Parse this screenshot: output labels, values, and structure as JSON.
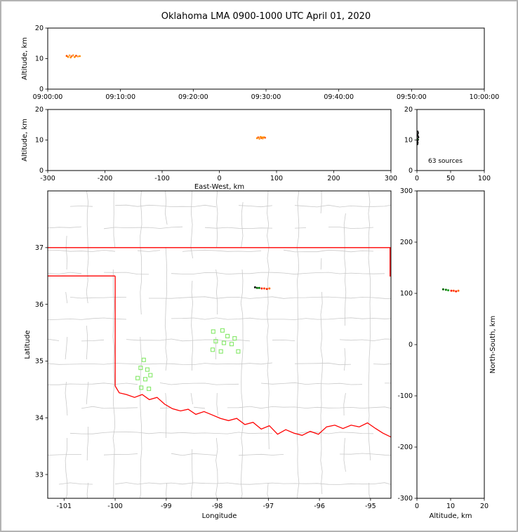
{
  "title": "Oklahoma LMA 0900-1000 UTC April 01, 2020",
  "frame": {
    "background": "#ffffff",
    "border_color": "#b3b3b3"
  },
  "chart_data": {
    "type": "scatter",
    "title": "Oklahoma LMA 0900-1000 UTC April 01, 2020",
    "panels": {
      "time_height": {
        "ylabel": "Altitude, km",
        "x_unit": "minutes after 09:00:00 UTC",
        "xlim": [
          0,
          60
        ],
        "ylim": [
          0,
          20
        ],
        "xticks": [
          {
            "v": 0,
            "label": "09:00:00"
          },
          {
            "v": 10,
            "label": "09:10:00"
          },
          {
            "v": 20,
            "label": "09:20:00"
          },
          {
            "v": 30,
            "label": "09:30:00"
          },
          {
            "v": 40,
            "label": "09:40:00"
          },
          {
            "v": 50,
            "label": "09:50:00"
          },
          {
            "v": 60,
            "label": "10:00:00"
          }
        ],
        "yticks": [
          0,
          10,
          20
        ],
        "points": [
          {
            "x": 2.6,
            "y": 10.9,
            "c": "#ff4e00"
          },
          {
            "x": 2.8,
            "y": 10.55,
            "c": "#ff8c00"
          },
          {
            "x": 3.0,
            "y": 11.05,
            "c": "#ffa143"
          },
          {
            "x": 3.15,
            "y": 10.4,
            "c": "#ff8c00"
          },
          {
            "x": 3.3,
            "y": 10.8,
            "c": "#ff6a2a"
          },
          {
            "x": 3.5,
            "y": 11.1,
            "c": "#ffa143"
          },
          {
            "x": 3.7,
            "y": 10.5,
            "c": "#ff8c00"
          },
          {
            "x": 3.9,
            "y": 10.95,
            "c": "#ff4e00"
          },
          {
            "x": 4.15,
            "y": 10.7,
            "c": "#ffa143"
          },
          {
            "x": 4.4,
            "y": 10.8,
            "c": "#ff8c00"
          }
        ]
      },
      "ew_height": {
        "xlabel": "East-West, km",
        "ylabel": "Altitude, km",
        "xlim": [
          -300,
          300
        ],
        "ylim": [
          0,
          20
        ],
        "xticks": [
          -300,
          -200,
          -100,
          0,
          100,
          200,
          300
        ],
        "yticks": [
          0,
          10,
          20
        ],
        "points": [
          {
            "x": 66,
            "y": 10.6,
            "c": "#ff8c00"
          },
          {
            "x": 68,
            "y": 10.9,
            "c": "#ff6a2a"
          },
          {
            "x": 70,
            "y": 10.4,
            "c": "#ffa143"
          },
          {
            "x": 72,
            "y": 11.0,
            "c": "#ff8c00"
          },
          {
            "x": 74,
            "y": 10.65,
            "c": "#ff4e00"
          },
          {
            "x": 76,
            "y": 10.5,
            "c": "#ffa143"
          },
          {
            "x": 78,
            "y": 10.9,
            "c": "#ff8c00"
          },
          {
            "x": 80,
            "y": 10.75,
            "c": "#ff6a2a"
          },
          {
            "x": 71,
            "y": 10.7,
            "c": "#ffa143"
          },
          {
            "x": 75,
            "y": 10.85,
            "c": "#ff8c00"
          }
        ]
      },
      "alt_stats": {
        "sources_label": "63 sources",
        "xlim": [
          0,
          100
        ],
        "ylim": [
          0,
          20
        ],
        "xticks": [
          0,
          50,
          100
        ],
        "yticks": [
          0,
          10,
          20
        ],
        "points": [
          {
            "x": 0.8,
            "y": 8.6,
            "c": "#000000"
          },
          {
            "x": 1.4,
            "y": 9.1,
            "c": "#000000"
          },
          {
            "x": 0.9,
            "y": 9.6,
            "c": "#000000"
          },
          {
            "x": 1.8,
            "y": 10.1,
            "c": "#000000"
          },
          {
            "x": 1.1,
            "y": 10.5,
            "c": "#000000"
          },
          {
            "x": 2.3,
            "y": 10.9,
            "c": "#000000"
          },
          {
            "x": 1.5,
            "y": 11.3,
            "c": "#000000"
          },
          {
            "x": 1.0,
            "y": 11.8,
            "c": "#000000"
          },
          {
            "x": 1.9,
            "y": 12.3,
            "c": "#000000"
          },
          {
            "x": 1.2,
            "y": 12.8,
            "c": "#000000"
          },
          {
            "x": 0.7,
            "y": 10.3,
            "c": "#006400"
          }
        ]
      },
      "plan_view": {
        "xlabel": "Longitude",
        "ylabel": "Latitude",
        "xlim": [
          -101.32,
          -94.6
        ],
        "ylim": [
          32.58,
          38.0
        ],
        "xticks": [
          -101,
          -100,
          -99,
          -98,
          -97,
          -96,
          -95
        ],
        "yticks": [
          33,
          34,
          35,
          36,
          37
        ],
        "county_line_color": "#c9c9c9",
        "state_border_color": "#ff0000",
        "state_border": [
          [
            [
              -101.32,
              37.0
            ],
            [
              -94.6,
              37.0
            ]
          ],
          [
            [
              -101.32,
              36.5
            ],
            [
              -100.0,
              36.5
            ]
          ],
          [
            [
              -100.0,
              36.5
            ],
            [
              -100.0,
              34.56
            ]
          ],
          [
            [
              -100.0,
              34.56
            ],
            [
              -99.92,
              34.44
            ],
            [
              -99.78,
              34.41
            ],
            [
              -99.62,
              34.36
            ],
            [
              -99.47,
              34.41
            ],
            [
              -99.33,
              34.32
            ],
            [
              -99.18,
              34.36
            ],
            [
              -99.03,
              34.24
            ],
            [
              -98.88,
              34.16
            ],
            [
              -98.72,
              34.12
            ],
            [
              -98.57,
              34.15
            ],
            [
              -98.42,
              34.06
            ],
            [
              -98.26,
              34.11
            ],
            [
              -98.1,
              34.05
            ],
            [
              -97.94,
              33.99
            ],
            [
              -97.78,
              33.95
            ],
            [
              -97.62,
              33.99
            ],
            [
              -97.46,
              33.88
            ],
            [
              -97.3,
              33.92
            ],
            [
              -97.14,
              33.8
            ],
            [
              -96.98,
              33.86
            ],
            [
              -96.82,
              33.71
            ],
            [
              -96.66,
              33.79
            ],
            [
              -96.5,
              33.73
            ],
            [
              -96.34,
              33.69
            ],
            [
              -96.18,
              33.76
            ],
            [
              -96.02,
              33.71
            ],
            [
              -95.86,
              33.84
            ],
            [
              -95.7,
              33.87
            ],
            [
              -95.54,
              33.81
            ],
            [
              -95.38,
              33.87
            ],
            [
              -95.22,
              33.84
            ],
            [
              -95.06,
              33.91
            ],
            [
              -94.9,
              33.81
            ],
            [
              -94.76,
              33.73
            ],
            [
              -94.6,
              33.66
            ]
          ],
          [
            [
              -94.618,
              37.0
            ],
            [
              -94.618,
              36.49
            ]
          ]
        ],
        "nldn_squares": {
          "color": "#84e868",
          "points": [
            [
              -99.44,
              35.02
            ],
            [
              -99.5,
              34.88
            ],
            [
              -99.37,
              34.85
            ],
            [
              -99.56,
              34.7
            ],
            [
              -99.41,
              34.68
            ],
            [
              -99.31,
              34.75
            ],
            [
              -99.49,
              34.53
            ],
            [
              -99.34,
              34.51
            ],
            [
              -98.08,
              35.52
            ],
            [
              -97.9,
              35.54
            ],
            [
              -97.8,
              35.44
            ],
            [
              -98.03,
              35.35
            ],
            [
              -97.87,
              35.32
            ],
            [
              -97.72,
              35.3
            ],
            [
              -98.09,
              35.2
            ],
            [
              -97.93,
              35.17
            ],
            [
              -97.59,
              35.17
            ],
            [
              -97.66,
              35.4
            ]
          ]
        },
        "sources": [
          {
            "x": -97.26,
            "y": 36.3,
            "c": "#111111"
          },
          {
            "x": -97.22,
            "y": 36.29,
            "c": "#006400"
          },
          {
            "x": -97.18,
            "y": 36.29,
            "c": "#007a00"
          },
          {
            "x": -97.13,
            "y": 36.28,
            "c": "#ff2000"
          },
          {
            "x": -97.08,
            "y": 36.28,
            "c": "#ff4500"
          },
          {
            "x": -97.03,
            "y": 36.27,
            "c": "#ff2000"
          },
          {
            "x": -96.98,
            "y": 36.28,
            "c": "#ff6a00"
          }
        ]
      },
      "ns_height": {
        "xlabel": "Altitude, km",
        "ylabel": "North-South, km",
        "xlim": [
          0,
          20
        ],
        "ylim": [
          -300,
          300
        ],
        "xticks": [
          0,
          10,
          20
        ],
        "yticks": [
          300,
          200,
          100,
          0,
          -100,
          -200,
          -300
        ],
        "points": [
          {
            "x": 7.8,
            "y": 108,
            "c": "#006400"
          },
          {
            "x": 8.6,
            "y": 107,
            "c": "#007a00"
          },
          {
            "x": 9.3,
            "y": 106,
            "c": "#1a9e1a"
          },
          {
            "x": 10.2,
            "y": 105,
            "c": "#ff2000"
          },
          {
            "x": 10.9,
            "y": 105,
            "c": "#ff4500"
          },
          {
            "x": 11.6,
            "y": 104,
            "c": "#ff2000"
          },
          {
            "x": 12.3,
            "y": 105,
            "c": "#ff6a00"
          }
        ]
      }
    }
  }
}
